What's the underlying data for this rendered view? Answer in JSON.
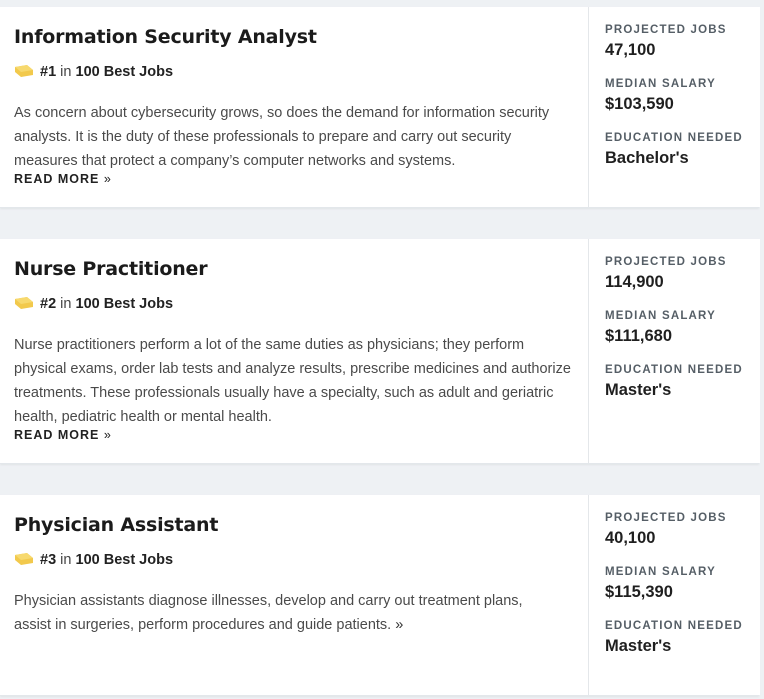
{
  "colors": {
    "badge": "#f2c94c",
    "page_bg": "#eef1f4",
    "card_bg": "#ffffff"
  },
  "icons": {
    "badge": "ribbon-badge-icon"
  },
  "jobs": [
    {
      "title": "Information Security Analyst",
      "rank": "#1",
      "rank_in": "in",
      "rank_list": "100 Best Jobs",
      "description": "As concern about cybersecurity grows, so does the demand for information security analysts. It is the duty of these professionals to prepare and carry out security measures that protect a company’s computer networks and systems.",
      "read_more": "READ MORE",
      "read_more_arrow": "»",
      "stats": {
        "projected_label": "PROJECTED JOBS",
        "projected_value": "47,100",
        "salary_label": "MEDIAN SALARY",
        "salary_value": "$103,590",
        "education_label": "EDUCATION NEEDED",
        "education_value": "Bachelor's"
      }
    },
    {
      "title": "Nurse Practitioner",
      "rank": "#2",
      "rank_in": "in",
      "rank_list": "100 Best Jobs",
      "description": "Nurse practitioners perform a lot of the same duties as physicians; they perform physical exams, order lab tests and analyze results, prescribe medicines and authorize treatments. These professionals usually have a specialty, such as adult and geriatric health, pediatric health or mental health.",
      "read_more": "READ MORE",
      "read_more_arrow": "»",
      "stats": {
        "projected_label": "PROJECTED JOBS",
        "projected_value": "114,900",
        "salary_label": "MEDIAN SALARY",
        "salary_value": "$111,680",
        "education_label": "EDUCATION NEEDED",
        "education_value": "Master's"
      }
    },
    {
      "title": "Physician Assistant",
      "rank": "#3",
      "rank_in": "in",
      "rank_list": "100 Best Jobs",
      "description": "Physician assistants diagnose illnesses, develop and carry out treatment plans, assist in surgeries, perform procedures and guide patients.",
      "read_more_arrow": "»",
      "stats": {
        "projected_label": "PROJECTED JOBS",
        "projected_value": "40,100",
        "salary_label": "MEDIAN SALARY",
        "salary_value": "$115,390",
        "education_label": "EDUCATION NEEDED",
        "education_value": "Master's"
      }
    }
  ]
}
